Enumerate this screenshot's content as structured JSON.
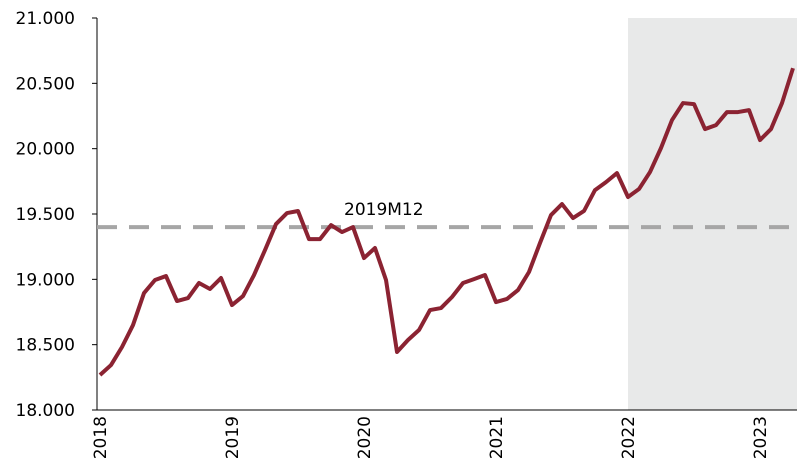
{
  "chart_data": {
    "type": "line",
    "categories": [
      "2018",
      null,
      null,
      null,
      null,
      null,
      null,
      null,
      null,
      null,
      null,
      null,
      "2019",
      null,
      null,
      null,
      null,
      null,
      null,
      null,
      null,
      null,
      null,
      null,
      "2020",
      null,
      null,
      null,
      null,
      null,
      null,
      null,
      null,
      null,
      null,
      null,
      "2021",
      null,
      null,
      null,
      null,
      null,
      null,
      null,
      null,
      null,
      null,
      null,
      "2022",
      null,
      null,
      null,
      null,
      null,
      null,
      null,
      null,
      null,
      null,
      null,
      "2023",
      null,
      null,
      null
    ],
    "series": [
      {
        "color": "#8b2332",
        "values": [
          18268,
          18344,
          18482,
          18650,
          18895,
          18995,
          19025,
          18834,
          18857,
          18972,
          18926,
          19010,
          18803,
          18872,
          19033,
          19224,
          19423,
          19507,
          19523,
          19308,
          19308,
          19415,
          19362,
          19400,
          19163,
          19240,
          18995,
          18444,
          18536,
          18612,
          18765,
          18780,
          18865,
          18972,
          19002,
          19033,
          18826,
          18850,
          18918,
          19056,
          19278,
          19492,
          19576,
          19469,
          19523,
          19683,
          19744,
          19813,
          19630,
          19691,
          19821,
          20005,
          20219,
          20349,
          20341,
          20150,
          20180,
          20280,
          20280,
          20295,
          20066,
          20150,
          20349,
          20616
        ]
      }
    ],
    "ylim": [
      18000,
      21000
    ],
    "yticks": [
      {
        "value": 18000,
        "label": "18.000"
      },
      {
        "value": 18500,
        "label": "18.500"
      },
      {
        "value": 19000,
        "label": "19.000"
      },
      {
        "value": 19500,
        "label": "19.500"
      },
      {
        "value": 20000,
        "label": "20.000"
      },
      {
        "value": 20500,
        "label": "20.500"
      },
      {
        "value": 21000,
        "label": "21.000"
      }
    ],
    "reference_line": {
      "label": "2019M12",
      "value": 19400,
      "color": "#a6a6a6"
    },
    "highlight_from": "2022",
    "highlight_color": "#e8e9e9",
    "grid": false
  }
}
